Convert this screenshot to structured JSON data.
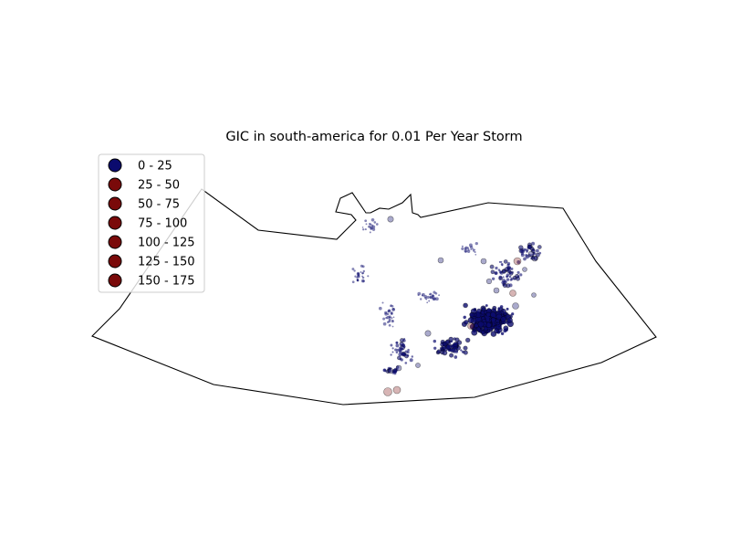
{
  "title": "GIC in south-america for 0.01 Per Year Storm",
  "legend": {
    "items": [
      {
        "label": "0 - 25",
        "color": "#0b0b6e"
      },
      {
        "label": "25 - 50",
        "color": "#7a0a0a"
      },
      {
        "label": "50 - 75",
        "color": "#7a0a0a"
      },
      {
        "label": "75 - 100",
        "color": "#7a0a0a"
      },
      {
        "label": "100 - 125",
        "color": "#7a0a0a"
      },
      {
        "label": "125 - 150",
        "color": "#7a0a0a"
      },
      {
        "label": "150 - 175",
        "color": "#7a0a0a"
      }
    ]
  },
  "colors": {
    "low": "#0b0b6e",
    "high": "#7a0a0a",
    "boundary": "#000000"
  }
}
